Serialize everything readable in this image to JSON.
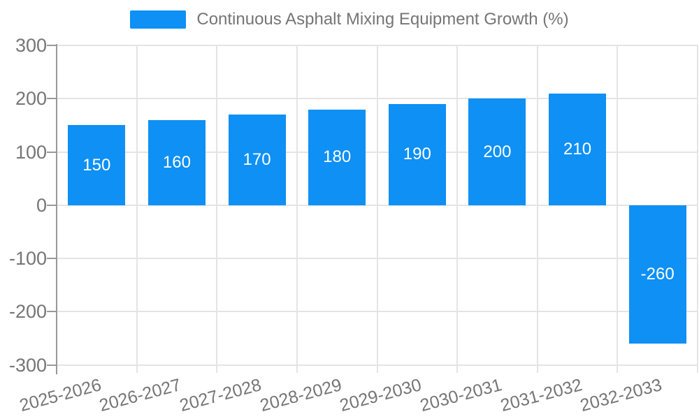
{
  "chart_data": {
    "type": "bar",
    "title": "Continuous Asphalt Mixing Equipment Growth (%)",
    "legend": {
      "position": "top",
      "label": "Continuous Asphalt Mixing Equipment Growth (%)"
    },
    "categories": [
      "2025-2026",
      "2026-2027",
      "2027-2028",
      "2028-2029",
      "2029-2030",
      "2030-2031",
      "2031-2032",
      "2032-2033"
    ],
    "values": [
      150,
      160,
      170,
      180,
      190,
      200,
      210,
      -260
    ],
    "bar_labels": [
      "150",
      "160",
      "170",
      "180",
      "190",
      "200",
      "210",
      "-260"
    ],
    "xlabel": "",
    "ylabel": "",
    "ylim": [
      -300,
      300
    ],
    "yticks": [
      300,
      200,
      100,
      0,
      -100,
      -200,
      -300
    ],
    "grid": true,
    "bar_label_position": "inside-center",
    "x_label_rotation_deg": 15,
    "colors": {
      "bar": "#0E90F5",
      "bar_label": "#FFFFFF",
      "axis_text": "#757575",
      "grid_line": "#E4E4E4",
      "axis_line": "#999999",
      "background": "#FFFFFF"
    }
  }
}
